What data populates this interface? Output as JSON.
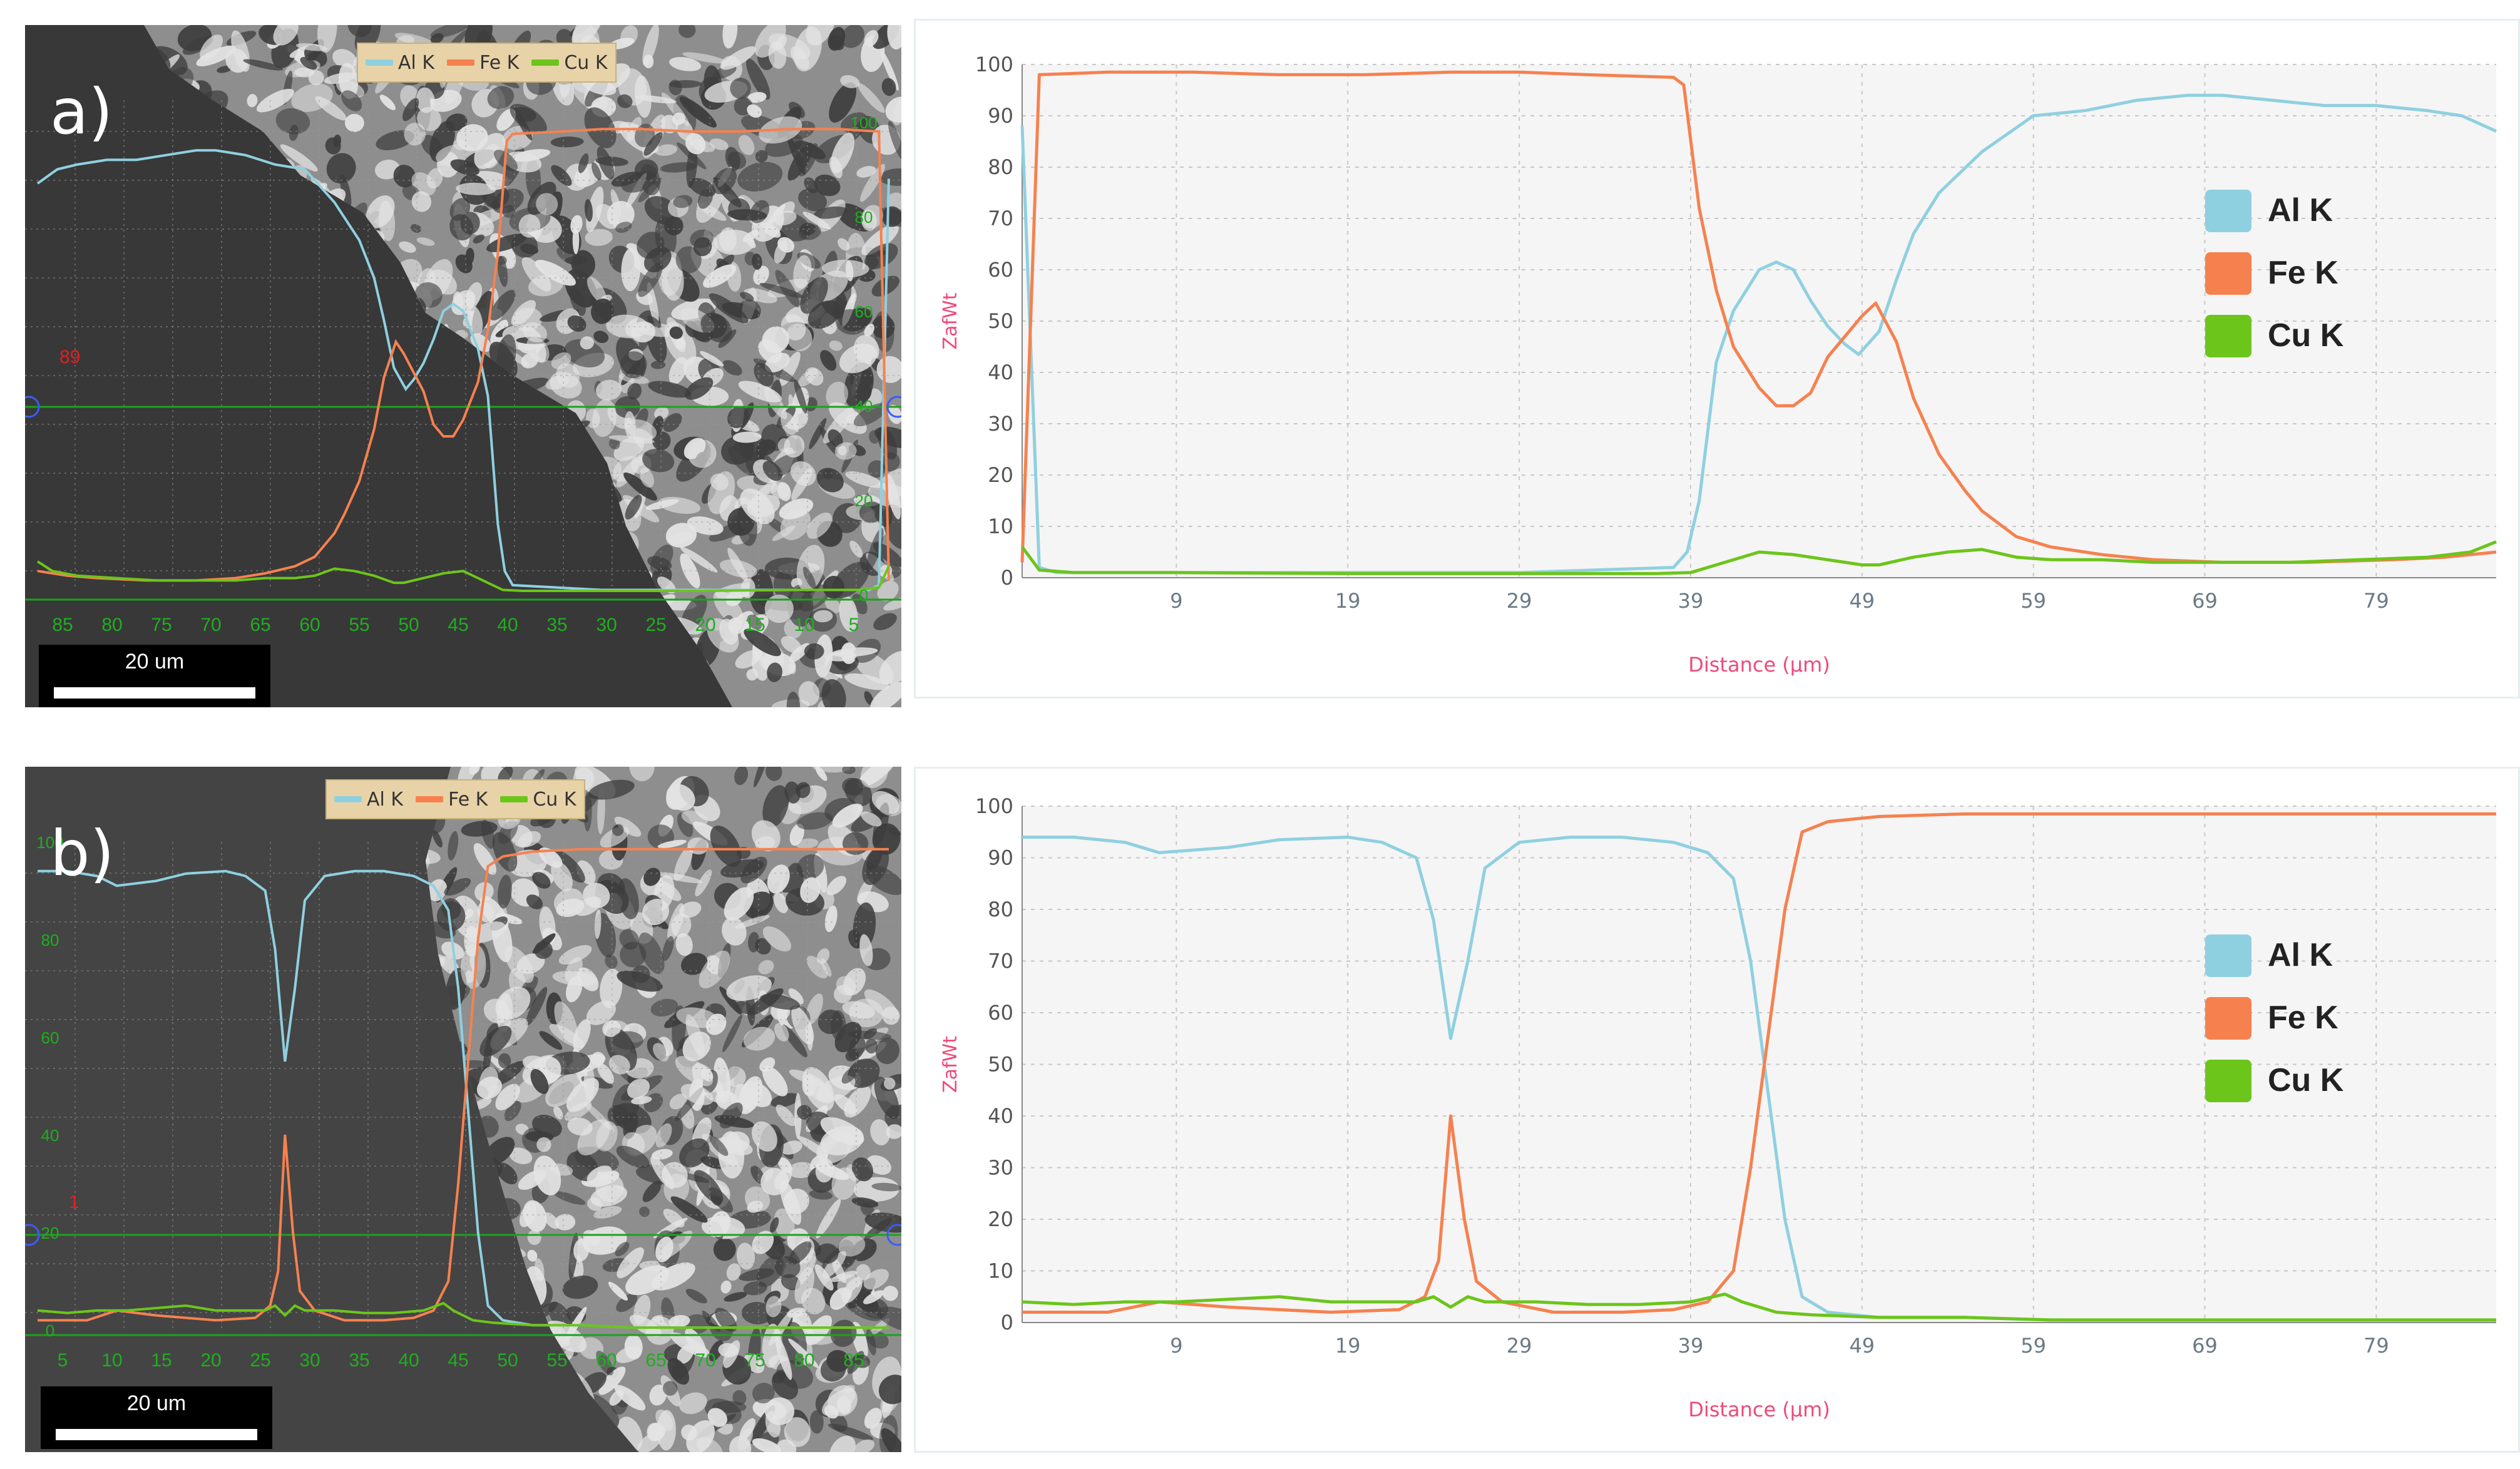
{
  "colors": {
    "al": "#8fd0e0",
    "fe": "#f6814f",
    "cu": "#6cc51b",
    "axis_title": "#ee4a7a",
    "tick": "#6b7a84",
    "grid": "#c8c8c8",
    "plot_bg": "#f5f5f5"
  },
  "panels": [
    {
      "id": "a",
      "label": "a)",
      "micrograph": {
        "legend": [
          "Al K",
          "Fe K",
          "Cu K"
        ],
        "scale_bar": "20 um",
        "marker": "89",
        "bottom_ticks": [
          "85",
          "80",
          "75",
          "70",
          "65",
          "60",
          "55",
          "50",
          "45",
          "40",
          "35",
          "30",
          "25",
          "20",
          "15",
          "10",
          "5"
        ],
        "right_ticks": [
          "100",
          "80",
          "60",
          "40",
          "20",
          "0"
        ]
      },
      "chart_data": {
        "type": "line",
        "xlabel": "Distance (µm)",
        "ylabel": "ZafWt",
        "xlim": [
          0,
          86
        ],
        "ylim": [
          0,
          100
        ],
        "x_ticks": [
          9,
          19,
          29,
          39,
          49,
          59,
          69,
          79
        ],
        "y_ticks": [
          0,
          10,
          20,
          30,
          40,
          50,
          60,
          70,
          80,
          90,
          100
        ],
        "grid": true,
        "legend_position": "right",
        "series": [
          {
            "name": "Al K",
            "color": "#8fd0e0",
            "points": [
              [
                0,
                88
              ],
              [
                1,
                2
              ],
              [
                2,
                1
              ],
              [
                10,
                1
              ],
              [
                19,
                1
              ],
              [
                29,
                1
              ],
              [
                38,
                2
              ],
              [
                38.8,
                5
              ],
              [
                39.5,
                15
              ],
              [
                40.5,
                42
              ],
              [
                41.5,
                52
              ],
              [
                43,
                60
              ],
              [
                44,
                61.5
              ],
              [
                45,
                60
              ],
              [
                46,
                54
              ],
              [
                47,
                49
              ],
              [
                48,
                45.5
              ],
              [
                48.8,
                43.5
              ],
              [
                50,
                48
              ],
              [
                51,
                58
              ],
              [
                52,
                67
              ],
              [
                53.5,
                75
              ],
              [
                56,
                83
              ],
              [
                59,
                90
              ],
              [
                62,
                91
              ],
              [
                65,
                93
              ],
              [
                68,
                94
              ],
              [
                70,
                94
              ],
              [
                73,
                93
              ],
              [
                76,
                92
              ],
              [
                79,
                92
              ],
              [
                82,
                91
              ],
              [
                84,
                90
              ],
              [
                86,
                87
              ]
            ]
          },
          {
            "name": "Fe K",
            "color": "#f6814f",
            "points": [
              [
                0,
                3
              ],
              [
                0.6,
                60
              ],
              [
                1,
                98
              ],
              [
                5,
                98.5
              ],
              [
                10,
                98.5
              ],
              [
                15,
                98
              ],
              [
                20,
                98
              ],
              [
                25,
                98.5
              ],
              [
                29,
                98.5
              ],
              [
                33,
                98
              ],
              [
                38,
                97.5
              ],
              [
                38.6,
                96
              ],
              [
                39.5,
                72
              ],
              [
                40.5,
                56
              ],
              [
                41.5,
                45
              ],
              [
                43,
                37
              ],
              [
                44,
                33.5
              ],
              [
                45,
                33.5
              ],
              [
                46,
                36
              ],
              [
                47,
                43
              ],
              [
                48,
                47
              ],
              [
                49,
                51
              ],
              [
                49.8,
                53.5
              ],
              [
                51,
                46
              ],
              [
                52,
                35
              ],
              [
                53.5,
                24
              ],
              [
                55,
                17
              ],
              [
                56,
                13
              ],
              [
                58,
                8
              ],
              [
                60,
                6
              ],
              [
                63,
                4.5
              ],
              [
                66,
                3.5
              ],
              [
                70,
                3
              ],
              [
                75,
                3
              ],
              [
                80,
                3.5
              ],
              [
                83,
                4
              ],
              [
                86,
                5
              ]
            ]
          },
          {
            "name": "Cu K",
            "color": "#6cc51b",
            "points": [
              [
                0,
                6
              ],
              [
                1,
                1.5
              ],
              [
                3,
                1
              ],
              [
                9,
                1
              ],
              [
                19,
                0.8
              ],
              [
                29,
                0.8
              ],
              [
                37,
                0.8
              ],
              [
                39,
                1
              ],
              [
                41,
                3
              ],
              [
                43,
                5
              ],
              [
                45,
                4.5
              ],
              [
                47,
                3.5
              ],
              [
                49,
                2.5
              ],
              [
                50,
                2.5
              ],
              [
                52,
                4
              ],
              [
                54,
                5
              ],
              [
                56,
                5.5
              ],
              [
                58,
                4
              ],
              [
                60,
                3.5
              ],
              [
                63,
                3.5
              ],
              [
                66,
                3
              ],
              [
                70,
                3
              ],
              [
                74,
                3
              ],
              [
                78,
                3.5
              ],
              [
                82,
                4
              ],
              [
                84.5,
                5
              ],
              [
                86,
                7
              ]
            ]
          }
        ]
      }
    },
    {
      "id": "b",
      "label": "b)",
      "micrograph": {
        "legend": [
          "Al K",
          "Fe K",
          "Cu K"
        ],
        "scale_bar": "20 um",
        "marker": "1",
        "bottom_ticks": [
          "5",
          "10",
          "15",
          "20",
          "25",
          "30",
          "35",
          "40",
          "45",
          "50",
          "55",
          "60",
          "65",
          "70",
          "75",
          "80",
          "85"
        ],
        "right_ticks": [
          "100",
          "80",
          "60",
          "40",
          "20",
          "0"
        ]
      },
      "chart_data": {
        "type": "line",
        "xlabel": "Distance (µm)",
        "ylabel": "ZafWt",
        "xlim": [
          0,
          86
        ],
        "ylim": [
          0,
          100
        ],
        "x_ticks": [
          9,
          19,
          29,
          39,
          49,
          59,
          69,
          79
        ],
        "y_ticks": [
          0,
          10,
          20,
          30,
          40,
          50,
          60,
          70,
          80,
          90,
          100
        ],
        "grid": true,
        "legend_position": "right",
        "series": [
          {
            "name": "Al K",
            "color": "#8fd0e0",
            "points": [
              [
                0,
                94
              ],
              [
                3,
                94
              ],
              [
                6,
                93
              ],
              [
                8,
                91
              ],
              [
                12,
                92
              ],
              [
                15,
                93.5
              ],
              [
                19,
                94
              ],
              [
                21,
                93
              ],
              [
                23,
                90
              ],
              [
                24,
                78
              ],
              [
                25,
                55
              ],
              [
                26,
                70
              ],
              [
                27,
                88
              ],
              [
                29,
                93
              ],
              [
                32,
                94
              ],
              [
                35,
                94
              ],
              [
                38,
                93
              ],
              [
                40,
                91
              ],
              [
                41.5,
                86
              ],
              [
                42.5,
                70
              ],
              [
                43.5,
                45
              ],
              [
                44.5,
                20
              ],
              [
                45.5,
                5
              ],
              [
                47,
                2
              ],
              [
                50,
                1
              ],
              [
                55,
                1
              ],
              [
                60,
                0.5
              ],
              [
                70,
                0.5
              ],
              [
                80,
                0.5
              ],
              [
                86,
                0.5
              ]
            ]
          },
          {
            "name": "Fe K",
            "color": "#f6814f",
            "points": [
              [
                0,
                2
              ],
              [
                5,
                2
              ],
              [
                8,
                4
              ],
              [
                12,
                3
              ],
              [
                18,
                2
              ],
              [
                22,
                2.5
              ],
              [
                23.5,
                5
              ],
              [
                24.3,
                12
              ],
              [
                25,
                40
              ],
              [
                25.8,
                20
              ],
              [
                26.5,
                8
              ],
              [
                28,
                4
              ],
              [
                31,
                2
              ],
              [
                35,
                2
              ],
              [
                38,
                2.5
              ],
              [
                40,
                4
              ],
              [
                41.5,
                10
              ],
              [
                42.5,
                30
              ],
              [
                43.5,
                55
              ],
              [
                44.5,
                80
              ],
              [
                45.5,
                95
              ],
              [
                47,
                97
              ],
              [
                50,
                98
              ],
              [
                55,
                98.5
              ],
              [
                60,
                98.5
              ],
              [
                70,
                98.5
              ],
              [
                80,
                98.5
              ],
              [
                86,
                98.5
              ]
            ]
          },
          {
            "name": "Cu K",
            "color": "#6cc51b",
            "points": [
              [
                0,
                4
              ],
              [
                3,
                3.5
              ],
              [
                6,
                4
              ],
              [
                9,
                4
              ],
              [
                12,
                4.5
              ],
              [
                15,
                5
              ],
              [
                18,
                4
              ],
              [
                21,
                4
              ],
              [
                23,
                4
              ],
              [
                24,
                5
              ],
              [
                25,
                3
              ],
              [
                26,
                5
              ],
              [
                27,
                4
              ],
              [
                30,
                4
              ],
              [
                33,
                3.5
              ],
              [
                36,
                3.5
              ],
              [
                39,
                4
              ],
              [
                41,
                5.5
              ],
              [
                42,
                4
              ],
              [
                44,
                2
              ],
              [
                46,
                1.5
              ],
              [
                50,
                1
              ],
              [
                55,
                1
              ],
              [
                60,
                0.5
              ],
              [
                70,
                0.5
              ],
              [
                80,
                0.5
              ],
              [
                86,
                0.5
              ]
            ]
          }
        ]
      }
    }
  ]
}
